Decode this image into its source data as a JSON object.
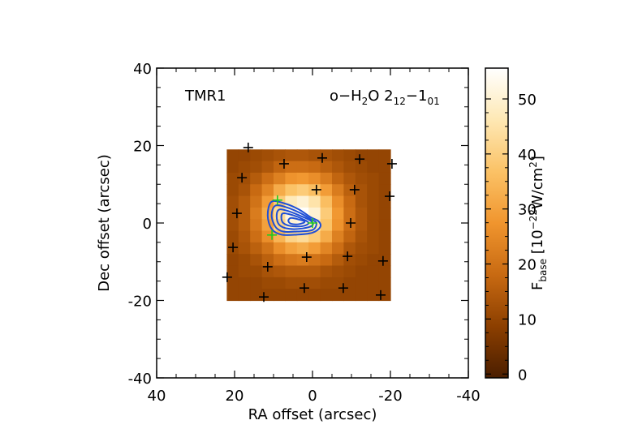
{
  "chart_data": {
    "type": "heatmap",
    "source_label": "TMR1",
    "line_label": [
      {
        "text": "o−H"
      },
      {
        "text": "2",
        "style": "sub"
      },
      {
        "text": "O 2"
      },
      {
        "text": "12",
        "style": "sub"
      },
      {
        "text": "−1"
      },
      {
        "text": "01",
        "style": "sub"
      }
    ],
    "x_label": "RA offset (arcsec)",
    "y_label": "Dec offset (arcsec)",
    "xlim": [
      40,
      -40
    ],
    "ylim": [
      -40,
      40
    ],
    "xticks": [
      40,
      20,
      0,
      -20,
      -40
    ],
    "yticks": [
      -40,
      -20,
      0,
      20,
      40
    ],
    "minor_ticks": true,
    "x": [
      20.5,
      17.5,
      14.5,
      11.5,
      8.5,
      5.5,
      2.5,
      -0.5,
      -3.5,
      -6.5,
      -9.5,
      -12.5,
      -15.5,
      -18.5
    ],
    "y": [
      17.5,
      14.5,
      11.5,
      8.5,
      5.5,
      2.5,
      -0.5,
      -3.5,
      -6.5,
      -9.5,
      -12.5,
      -15.5,
      -18.5
    ],
    "z": [
      [
        10,
        10,
        11,
        12,
        13,
        14,
        14,
        13,
        13,
        12,
        11,
        10,
        10,
        10
      ],
      [
        10,
        11,
        12,
        14,
        17,
        19,
        19,
        18,
        16,
        14,
        12,
        11,
        10,
        10
      ],
      [
        11,
        12,
        15,
        19,
        23,
        27,
        28,
        26,
        22,
        17,
        14,
        12,
        11,
        10
      ],
      [
        11,
        13,
        18,
        24,
        32,
        37,
        39,
        36,
        29,
        22,
        16,
        13,
        11,
        10
      ],
      [
        12,
        15,
        20,
        29,
        39,
        47,
        50,
        45,
        36,
        26,
        18,
        13,
        11,
        10
      ],
      [
        12,
        15,
        22,
        32,
        43,
        52,
        55,
        50,
        39,
        28,
        19,
        14,
        11,
        10
      ],
      [
        12,
        15,
        21,
        30,
        41,
        50,
        52,
        47,
        37,
        27,
        19,
        14,
        11,
        10
      ],
      [
        11,
        14,
        19,
        26,
        34,
        41,
        43,
        39,
        32,
        23,
        17,
        13,
        11,
        10
      ],
      [
        11,
        13,
        16,
        20,
        26,
        30,
        32,
        29,
        24,
        19,
        14,
        12,
        11,
        10
      ],
      [
        10,
        11,
        13,
        16,
        19,
        21,
        22,
        20,
        18,
        15,
        12,
        11,
        10,
        10
      ],
      [
        10,
        11,
        11,
        13,
        14,
        15,
        15,
        15,
        13,
        12,
        11,
        10,
        10,
        10
      ],
      [
        10,
        10,
        10,
        11,
        11,
        12,
        12,
        12,
        11,
        11,
        10,
        10,
        10,
        10
      ],
      [
        10,
        10,
        10,
        10,
        10,
        10,
        10,
        10,
        10,
        10,
        10,
        10,
        10,
        10
      ]
    ],
    "colormap": [
      "#4a1e00",
      "#8c3f00",
      "#c86a12",
      "#f0952e",
      "#fbc266",
      "#fee8b4",
      "#ffffff"
    ],
    "clim": [
      -0.7,
      55.6
    ],
    "cticks": [
      0,
      10,
      20,
      30,
      40,
      50
    ],
    "colorbar_label": [
      {
        "text": "F"
      },
      {
        "text": "base",
        "style": "sub"
      },
      {
        "text": " [10"
      },
      {
        "text": "−22",
        "style": "sup"
      },
      {
        "text": "W/cm"
      },
      {
        "text": "2",
        "style": "sup"
      },
      {
        "text": "]"
      }
    ],
    "contours": {
      "color": "#1f4fd6",
      "lines": [
        {
          "x": [
            10.5,
            7,
            3.5,
            0.5,
            -1.5,
            -2,
            0,
            4,
            8,
            10.5,
            11.5
          ],
          "y": [
            5.5,
            5,
            3.5,
            1.5,
            0.5,
            -1,
            -2.5,
            -3,
            -3,
            -1.5,
            2
          ]
        },
        {
          "x": [
            9.5,
            6.5,
            3,
            0.5,
            -1,
            0,
            4,
            7.5,
            9.5,
            10.5
          ],
          "y": [
            4.5,
            4,
            2.5,
            1,
            0,
            -1.8,
            -2.2,
            -2.2,
            -1,
            2
          ]
        },
        {
          "x": [
            8.5,
            6,
            3,
            0.5,
            0,
            2.5,
            6,
            8.5,
            9.2
          ],
          "y": [
            3.5,
            3,
            1.8,
            0.6,
            -0.6,
            -1.4,
            -1.5,
            -0.5,
            1.8
          ]
        },
        {
          "x": [
            7.5,
            5,
            2.5,
            1,
            2.5,
            5.5,
            7.5,
            8
          ],
          "y": [
            2.5,
            2,
            1,
            0,
            -0.8,
            -0.8,
            0,
            1.5
          ]
        },
        {
          "x": [
            5.5,
            3.5,
            2,
            3.5,
            5.5,
            6.2
          ],
          "y": [
            1.3,
            0.9,
            0.3,
            -0.3,
            -0.2,
            0.6
          ]
        }
      ]
    },
    "positions": {
      "color": "#000000",
      "x": [
        16.5,
        7.3,
        -2.5,
        -12.1,
        -20.4,
        18.1,
        -1.0,
        -10.8,
        -19.8,
        19.4,
        -9.8,
        20.4,
        -18.1,
        1.5,
        -9.0,
        11.5,
        21.9,
        2.1,
        -7.9,
        -17.5,
        12.5
      ],
      "y": [
        19.5,
        15.3,
        16.8,
        16.5,
        15.3,
        11.7,
        8.6,
        8.6,
        6.9,
        2.5,
        0,
        -6.3,
        -9.8,
        -8.8,
        -8.6,
        -11.3,
        -14.0,
        -16.8,
        -16.8,
        -18.6,
        -19.1
      ]
    },
    "highlight": {
      "color": "#22cc22",
      "x": [
        9.0,
        0,
        10.4
      ],
      "y": [
        5.9,
        0,
        -3.1
      ]
    }
  }
}
